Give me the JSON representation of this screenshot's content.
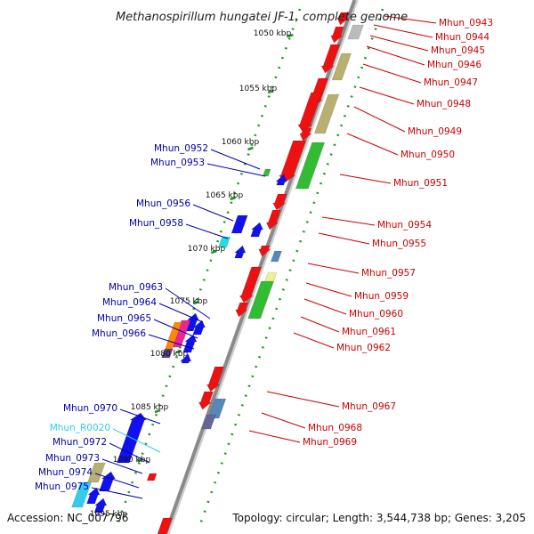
{
  "title": "Methanospirillum hungatei JF-1, complete genome",
  "footer": {
    "accession": "Accession: NC_007796",
    "summary": "Topology: circular; Length: 3,544,738 bp; Genes: 3,205"
  },
  "scale_labels": [
    "1050 kbp",
    "1055 kbp",
    "1060 kbp",
    "1065 kbp",
    "1070 kbp",
    "1075 kbp",
    "1080 kbp",
    "1085 kbp",
    "1090 kbp",
    "1095 kbp"
  ],
  "forward_genes": [
    "Mhun_0943",
    "Mhun_0944",
    "Mhun_0945",
    "Mhun_0946",
    "Mhun_0947",
    "Mhun_0948",
    "Mhun_0949",
    "Mhun_0950",
    "Mhun_0951",
    "Mhun_0954",
    "Mhun_0955",
    "Mhun_0957",
    "Mhun_0959",
    "Mhun_0960",
    "Mhun_0961",
    "Mhun_0962",
    "Mhun_0967",
    "Mhun_0968",
    "Mhun_0969"
  ],
  "reverse_genes": [
    "Mhun_0952",
    "Mhun_0953",
    "Mhun_0956",
    "Mhun_0958",
    "Mhun_0963",
    "Mhun_0964",
    "Mhun_0965",
    "Mhun_0966",
    "Mhun_0970",
    "Mhun_R0020",
    "Mhun_0972",
    "Mhun_0973",
    "Mhun_0974",
    "Mhun_0975"
  ],
  "colors": {
    "forward_label": "#cc0000",
    "reverse_label": "#0000aa",
    "rna_label": "#33ccee",
    "cds_red": "#ee1111",
    "cds_blue": "#1111ee",
    "khaki": "#b8b070",
    "green": "#33bb33",
    "backbone": "#8a8a8a",
    "dots": "#229922"
  }
}
